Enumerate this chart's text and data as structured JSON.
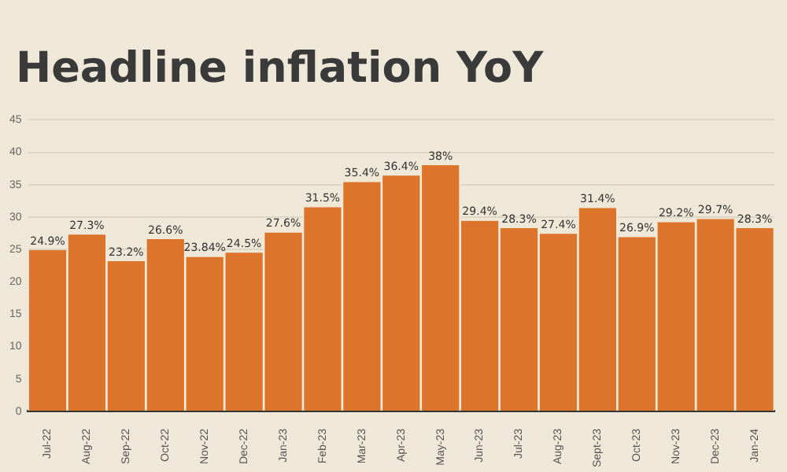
{
  "chart_data": {
    "type": "bar",
    "title": "Headline inflation YoY",
    "categories": [
      "Jul-22",
      "Aug-22",
      "Sep-22",
      "Oct-22",
      "Nov-22",
      "Dec-22",
      "Jan-23",
      "Feb-23",
      "Mar-23",
      "Apr-23",
      "May-23",
      "Jun-23",
      "Jul-23",
      "Aug-23",
      "Sept-23",
      "Oct-23",
      "Nov-23",
      "Dec-23",
      "Jan-24"
    ],
    "values": [
      24.9,
      27.3,
      23.2,
      26.6,
      23.84,
      24.5,
      27.6,
      31.5,
      35.4,
      36.4,
      38,
      29.4,
      28.3,
      27.4,
      31.4,
      26.9,
      29.2,
      29.7,
      28.3
    ],
    "value_labels": [
      "24.9%",
      "27.3%",
      "23.2%",
      "26.6%",
      "23.84%",
      "24.5%",
      "27.6%",
      "31.5%",
      "35.4%",
      "36.4%",
      "38%",
      "29.4%",
      "28.3%",
      "27.4%",
      "31.4%",
      "26.9%",
      "29.2%",
      "29.7%",
      "28.3%"
    ],
    "color": "#dd742b",
    "ylim": [
      0,
      45
    ],
    "yticks": [
      0,
      5,
      10,
      15,
      20,
      25,
      30,
      35,
      40,
      45
    ],
    "grid": "y",
    "legend": false
  }
}
